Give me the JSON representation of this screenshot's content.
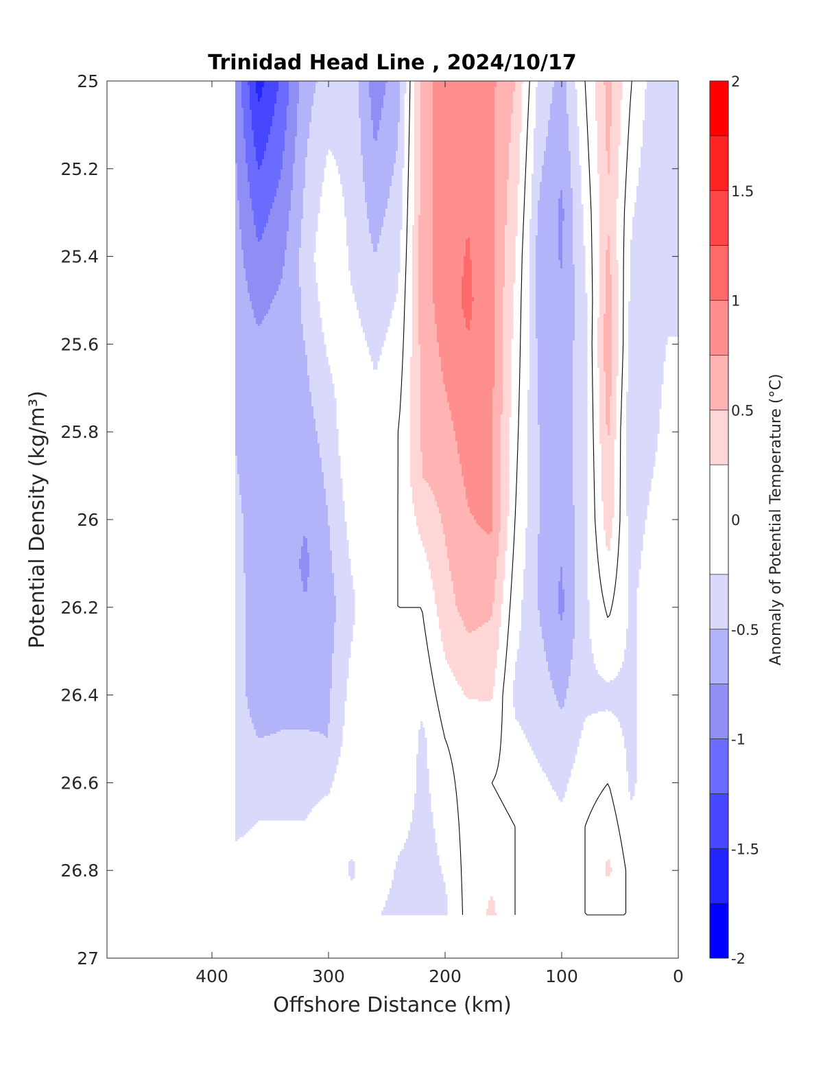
{
  "chart_data": {
    "type": "heatmap",
    "title": "Trinidad Head Line , 2024/10/17",
    "xlabel": "Offshore Distance (km)",
    "ylabel": "Potential Density (kg/m³)",
    "xlim": [
      490,
      0
    ],
    "ylim": [
      25,
      27
    ],
    "x_ticks": [
      400,
      300,
      200,
      100,
      0
    ],
    "x_tick_labels": [
      "400",
      "300",
      "200",
      "100",
      "0"
    ],
    "y_ticks": [
      25,
      25.2,
      25.4,
      25.6,
      25.8,
      26,
      26.2,
      26.4,
      26.6,
      26.8,
      27
    ],
    "y_tick_labels": [
      "25",
      "25.2",
      "25.4",
      "25.6",
      "25.8",
      "26",
      "26.2",
      "26.4",
      "26.6",
      "26.8",
      "27"
    ],
    "colorbar": {
      "label": "Anomaly of Potential Temperature (°C)",
      "range": [
        -2,
        2
      ],
      "ticks": [
        -2,
        -1.5,
        -1,
        -0.5,
        0,
        0.5,
        1,
        1.5,
        2
      ],
      "tick_labels": [
        "-2",
        "-1.5",
        "-1",
        "-0.5",
        "0",
        "0.5",
        "1",
        "1.5",
        "2"
      ],
      "levels": [
        -2,
        -1.75,
        -1.5,
        -1.25,
        -1,
        -0.75,
        -0.5,
        -0.25,
        0.25,
        0.5,
        0.75,
        1,
        1.25,
        1.5,
        1.75,
        2
      ],
      "colors": [
        "#0000ff",
        "#2424ff",
        "#4747ff",
        "#6b6bff",
        "#8e8ef5",
        "#b3b3fa",
        "#d9d9fc",
        "#ffffff",
        "#ffd6d6",
        "#ffb3b3",
        "#ff8f8f",
        "#ff6b6b",
        "#ff4747",
        "#ff2424",
        "#ff0000"
      ]
    },
    "data_extent": {
      "x": [
        0,
        380
      ],
      "y": [
        25,
        26.9
      ]
    },
    "columns": [
      {
        "x": 380,
        "values": [
          [
            25.0,
            -0.8
          ],
          [
            25.5,
            -0.6
          ],
          [
            26.0,
            -0.45
          ],
          [
            26.7,
            -0.3
          ],
          [
            26.9,
            0
          ]
        ]
      },
      {
        "x": 360,
        "values": [
          [
            25.0,
            -1.6
          ],
          [
            25.3,
            -1.1
          ],
          [
            25.6,
            -0.7
          ],
          [
            26.0,
            -0.6
          ],
          [
            26.4,
            -0.65
          ],
          [
            26.6,
            -0.35
          ],
          [
            26.9,
            0
          ]
        ]
      },
      {
        "x": 340,
        "values": [
          [
            25.0,
            -1.2
          ],
          [
            25.3,
            -0.9
          ],
          [
            25.6,
            -0.6
          ],
          [
            26.0,
            -0.6
          ],
          [
            26.4,
            -0.6
          ],
          [
            26.6,
            -0.35
          ],
          [
            26.9,
            0
          ]
        ]
      },
      {
        "x": 320,
        "values": [
          [
            25.0,
            -0.6
          ],
          [
            25.4,
            -0.4
          ],
          [
            25.8,
            -0.6
          ],
          [
            26.1,
            -0.8
          ],
          [
            26.4,
            -0.6
          ],
          [
            26.6,
            -0.35
          ],
          [
            26.9,
            0
          ]
        ]
      },
      {
        "x": 300,
        "values": [
          [
            25.0,
            -0.4
          ],
          [
            25.4,
            0
          ],
          [
            25.8,
            -0.4
          ],
          [
            26.2,
            -0.6
          ],
          [
            26.5,
            -0.5
          ],
          [
            26.7,
            -0.1
          ],
          [
            26.9,
            0
          ]
        ]
      },
      {
        "x": 280,
        "values": [
          [
            25.0,
            -0.35
          ],
          [
            25.4,
            -0.3
          ],
          [
            25.8,
            0
          ],
          [
            26.2,
            -0.3
          ],
          [
            26.6,
            0
          ],
          [
            26.8,
            -0.3
          ],
          [
            26.9,
            -0.1
          ]
        ]
      },
      {
        "x": 260,
        "values": [
          [
            25.0,
            -0.9
          ],
          [
            25.3,
            -0.6
          ],
          [
            25.6,
            -0.3
          ],
          [
            26.0,
            0
          ],
          [
            26.5,
            0
          ],
          [
            26.8,
            0
          ],
          [
            26.9,
            -0.2
          ]
        ]
      },
      {
        "x": 240,
        "values": [
          [
            25.0,
            -0.6
          ],
          [
            25.4,
            -0.3
          ],
          [
            25.8,
            0
          ],
          [
            26.2,
            0
          ],
          [
            26.6,
            0
          ],
          [
            26.8,
            -0.3
          ],
          [
            26.9,
            -0.4
          ]
        ]
      },
      {
        "x": 220,
        "values": [
          [
            25.0,
            0.6
          ],
          [
            25.5,
            0.6
          ],
          [
            25.9,
            0.5
          ],
          [
            26.2,
            0
          ],
          [
            26.5,
            -0.3
          ],
          [
            26.9,
            -0.4
          ]
        ]
      },
      {
        "x": 200,
        "values": [
          [
            25.0,
            0.9
          ],
          [
            25.5,
            0.9
          ],
          [
            25.9,
            0.6
          ],
          [
            26.2,
            0.4
          ],
          [
            26.5,
            0
          ],
          [
            26.9,
            -0.3
          ]
        ]
      },
      {
        "x": 180,
        "values": [
          [
            25.0,
            0.9
          ],
          [
            25.5,
            1.05
          ],
          [
            25.9,
            0.8
          ],
          [
            26.2,
            0.6
          ],
          [
            26.5,
            0.1
          ],
          [
            26.9,
            0.1
          ]
        ]
      },
      {
        "x": 160,
        "values": [
          [
            25.0,
            0.8
          ],
          [
            25.5,
            0.8
          ],
          [
            26.0,
            0.8
          ],
          [
            26.3,
            0.4
          ],
          [
            26.6,
            0
          ],
          [
            26.9,
            0.3
          ]
        ]
      },
      {
        "x": 140,
        "values": [
          [
            25.0,
            0.5
          ],
          [
            25.5,
            0.2
          ],
          [
            26.0,
            0
          ],
          [
            26.4,
            -0.3
          ],
          [
            26.7,
            0
          ],
          [
            26.9,
            0
          ]
        ]
      },
      {
        "x": 120,
        "values": [
          [
            25.0,
            -0.3
          ],
          [
            25.4,
            -0.6
          ],
          [
            25.8,
            -0.5
          ],
          [
            26.2,
            -0.5
          ],
          [
            26.5,
            -0.3
          ],
          [
            26.8,
            0
          ],
          [
            26.9,
            0
          ]
        ]
      },
      {
        "x": 100,
        "values": [
          [
            25.0,
            -0.6
          ],
          [
            25.3,
            -0.8
          ],
          [
            25.8,
            -0.65
          ],
          [
            26.2,
            -0.8
          ],
          [
            26.6,
            -0.3
          ],
          [
            26.9,
            0
          ]
        ]
      },
      {
        "x": 80,
        "values": [
          [
            25.0,
            0
          ],
          [
            25.5,
            -0.3
          ],
          [
            26.0,
            -0.3
          ],
          [
            26.4,
            -0.3
          ],
          [
            26.7,
            0
          ],
          [
            26.9,
            0
          ]
        ]
      },
      {
        "x": 60,
        "values": [
          [
            25.0,
            0.6
          ],
          [
            25.3,
            0.5
          ],
          [
            25.6,
            0.7
          ],
          [
            26.0,
            0.4
          ],
          [
            26.4,
            -0.3
          ],
          [
            26.8,
            0.3
          ],
          [
            26.9,
            0
          ]
        ]
      },
      {
        "x": 40,
        "values": [
          [
            25.0,
            0
          ],
          [
            25.4,
            -0.3
          ],
          [
            25.8,
            -0.5
          ],
          [
            26.2,
            -0.3
          ],
          [
            26.6,
            -0.3
          ],
          [
            26.9,
            0
          ]
        ]
      },
      {
        "x": 20,
        "values": [
          [
            25.0,
            -0.4
          ],
          [
            25.4,
            -0.5
          ],
          [
            25.8,
            -0.3
          ],
          [
            26.2,
            0
          ],
          [
            26.6,
            0
          ],
          [
            26.9,
            0
          ]
        ]
      },
      {
        "x": 10,
        "values": [
          [
            25.0,
            -0.3
          ],
          [
            25.5,
            -0.3
          ],
          [
            26.0,
            0
          ],
          [
            26.9,
            0
          ]
        ]
      }
    ]
  }
}
